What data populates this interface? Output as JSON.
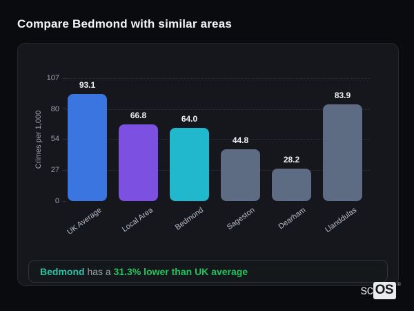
{
  "title": "Compare Bedmond with similar areas",
  "note": {
    "area": "Bedmond",
    "connector": " has a ",
    "stat": "31.3% lower than UK average"
  },
  "logo": {
    "prefix": "sc",
    "suffix": "OS",
    "mark": "®"
  },
  "colors": {
    "page_bg": "#0a0b0e",
    "card_bg": "#15171c",
    "card_border": "#26292f",
    "grid_line": "#2d3038",
    "axis_text": "#9aa1ab",
    "xlabel_text": "#b7bdc6",
    "value_text": "#eceef1",
    "title_text": "#f4f5f7",
    "note_bg": "#15181a",
    "note_border": "#2f343a",
    "note_text": "#9aa3ad",
    "area_accent": "#2cc2a7",
    "stat_green": "#23c45f"
  },
  "chart_data": {
    "type": "bar",
    "categories": [
      "UK Average",
      "Local Area",
      "Bedmond",
      "Sageston",
      "Dearham",
      "Llanddulas"
    ],
    "values": [
      93.1,
      66.8,
      64.0,
      44.8,
      28.2,
      83.9
    ],
    "value_labels": [
      "93.1",
      "66.8",
      "64.0",
      "44.8",
      "28.2",
      "83.9"
    ],
    "bar_colors": [
      "#3b76e0",
      "#7c51e1",
      "#21b8ce",
      "#5d6c83",
      "#5d6c83",
      "#5d6c83"
    ],
    "title": "Compare Bedmond with similar areas",
    "xlabel": "",
    "ylabel": "Crimes per 1,000",
    "yticks": [
      0,
      27,
      54,
      80,
      107
    ],
    "ylim": [
      0,
      107
    ],
    "grid": "horizontal-dotted",
    "legend_position": "none"
  }
}
